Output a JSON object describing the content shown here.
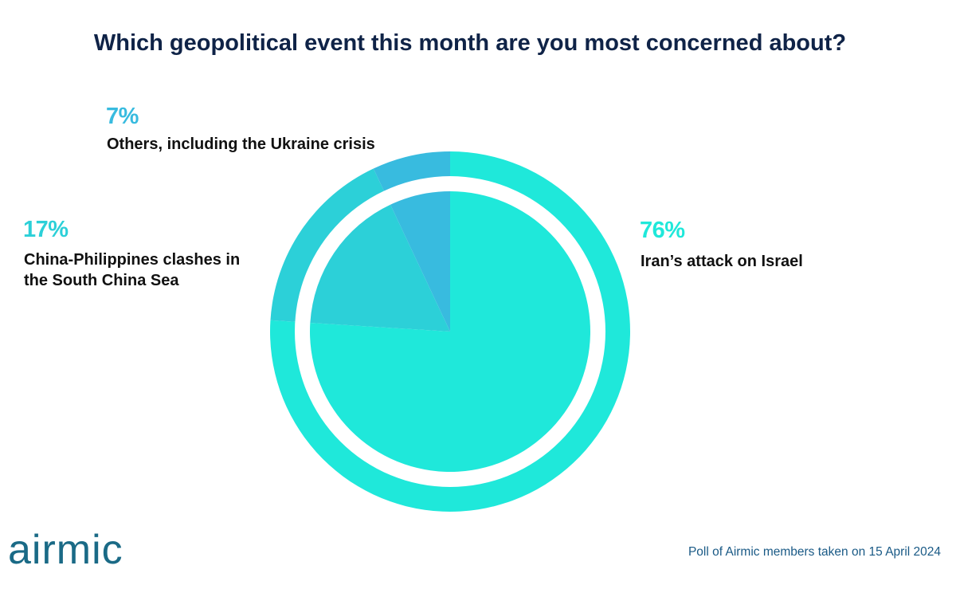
{
  "chart_data": {
    "type": "pie",
    "title": "Which geopolitical event this month are you most concerned about?",
    "slices": [
      {
        "label": "Iran’s attack on Israel",
        "value": 76,
        "value_label": "76%",
        "color": "#1fe8da"
      },
      {
        "label": "China-Philippines clashes in the South China Sea",
        "label_lines": [
          "China-Philippines clashes in",
          "the South China Sea"
        ],
        "value": 17,
        "value_label": "17%",
        "color": "#2cd0d8"
      },
      {
        "label": "Others, including the Ukraine crisis",
        "value": 7,
        "value_label": "7%",
        "color": "#38bbdf"
      }
    ]
  },
  "colors": {
    "title": "#0f2347",
    "label_text": "#111111",
    "logo": "#1a6a86",
    "source": "#1a5a86"
  },
  "branding": {
    "logo_text": "airmic"
  },
  "footer": {
    "source": "Poll of Airmic members taken on 15 April 2024"
  }
}
